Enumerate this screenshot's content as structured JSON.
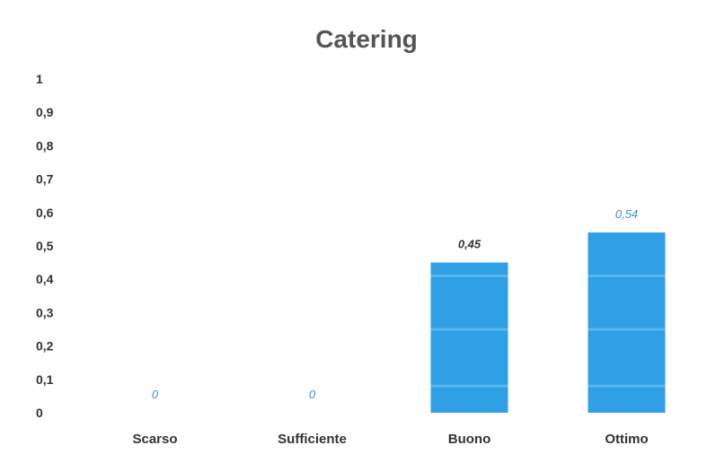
{
  "chart_data": {
    "type": "bar",
    "title": "Catering",
    "xlabel": "",
    "ylabel": "",
    "categories": [
      "Scarso",
      "Sufficiente",
      "Buono",
      "Ottimo"
    ],
    "values": [
      0,
      0,
      0.45,
      0.54
    ],
    "data_labels": [
      "0",
      "0",
      "0,45",
      "0,54"
    ],
    "yticks": [
      0,
      0.1,
      0.2,
      0.3,
      0.4,
      0.5,
      0.6,
      0.7,
      0.8,
      0.9,
      1
    ],
    "ytick_labels": [
      "0",
      "0,1",
      "0,2",
      "0,3",
      "0,4",
      "0,5",
      "0,6",
      "0,7",
      "0,8",
      "0,9",
      "1"
    ],
    "ylim": [
      0,
      1
    ],
    "grid": false,
    "legend": "none",
    "colors": {
      "bar": "#2f9fe6",
      "bar_band": "#62bdf1",
      "title": "#555555",
      "axis_text": "#333333",
      "label_dark": "#333333",
      "label_blue": "#3b8fd6"
    }
  }
}
